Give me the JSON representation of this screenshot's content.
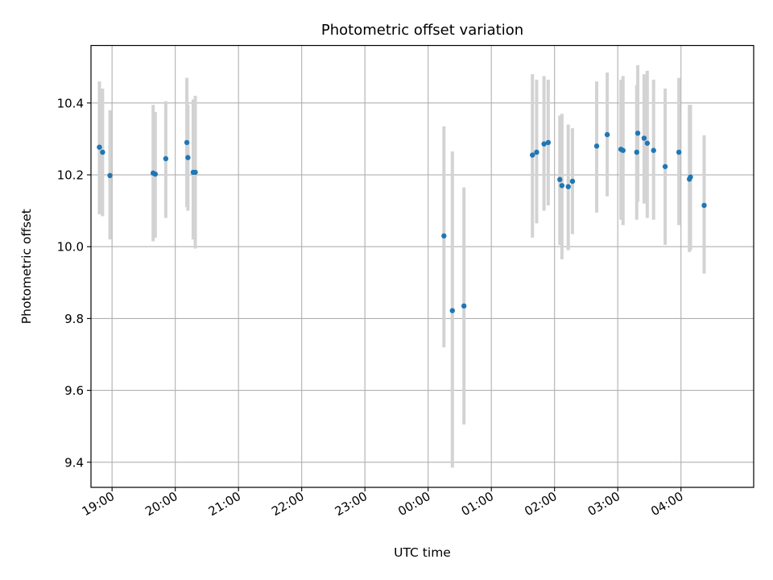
{
  "chart_data": {
    "type": "scatter",
    "title": "Photometric offset variation",
    "xlabel": "UTC time",
    "ylabel": "Photometric offset",
    "grid": true,
    "x_unit": "UTC time (HH:MM, spanning midnight)",
    "xlim": [
      "18:40",
      "05:09"
    ],
    "ylim": [
      9.33,
      10.56
    ],
    "x_ticks": [
      "19:00",
      "20:00",
      "21:00",
      "22:00",
      "23:00",
      "00:00",
      "01:00",
      "02:00",
      "03:00",
      "04:00"
    ],
    "y_ticks": [
      9.4,
      9.6,
      9.8,
      10.0,
      10.2,
      10.4
    ],
    "y_tick_labels": [
      "9.4",
      "9.6",
      "9.8",
      "10.0",
      "10.2",
      "10.4"
    ],
    "colors": {
      "point": "#1f77b4",
      "errorbar": "#d3d3d3",
      "grid": "#b0b0b0"
    },
    "series": [
      {
        "points": [
          {
            "x": "18:48",
            "y": 10.277,
            "err_low": 10.09,
            "err_high": 10.46
          },
          {
            "x": "18:51",
            "y": 10.263,
            "err_low": 10.085,
            "err_high": 10.44
          },
          {
            "x": "18:58",
            "y": 10.198,
            "err_low": 10.02,
            "err_high": 10.38
          },
          {
            "x": "19:39",
            "y": 10.205,
            "err_low": 10.015,
            "err_high": 10.395
          },
          {
            "x": "19:41",
            "y": 10.202,
            "err_low": 10.025,
            "err_high": 10.375
          },
          {
            "x": "19:51",
            "y": 10.245,
            "err_low": 10.08,
            "err_high": 10.405
          },
          {
            "x": "20:11",
            "y": 10.29,
            "err_low": 10.11,
            "err_high": 10.47
          },
          {
            "x": "20:12",
            "y": 10.248,
            "err_low": 10.1,
            "err_high": 10.395
          },
          {
            "x": "20:17",
            "y": 10.207,
            "err_low": 10.02,
            "err_high": 10.41
          },
          {
            "x": "20:19",
            "y": 10.207,
            "err_low": 9.995,
            "err_high": 10.42
          },
          {
            "x": "00:15",
            "y": 10.03,
            "err_low": 9.72,
            "err_high": 10.335
          },
          {
            "x": "00:23",
            "y": 9.822,
            "err_low": 9.385,
            "err_high": 10.265
          },
          {
            "x": "00:34",
            "y": 9.835,
            "err_low": 9.505,
            "err_high": 10.165
          },
          {
            "x": "01:39",
            "y": 10.255,
            "err_low": 10.025,
            "err_high": 10.48
          },
          {
            "x": "01:43",
            "y": 10.263,
            "err_low": 10.065,
            "err_high": 10.465
          },
          {
            "x": "01:50",
            "y": 10.286,
            "err_low": 10.1,
            "err_high": 10.475
          },
          {
            "x": "01:54",
            "y": 10.29,
            "err_low": 10.115,
            "err_high": 10.465
          },
          {
            "x": "02:05",
            "y": 10.187,
            "err_low": 10.005,
            "err_high": 10.365
          },
          {
            "x": "02:07",
            "y": 10.17,
            "err_low": 9.965,
            "err_high": 10.37
          },
          {
            "x": "02:13",
            "y": 10.167,
            "err_low": 9.99,
            "err_high": 10.34
          },
          {
            "x": "02:17",
            "y": 10.182,
            "err_low": 10.035,
            "err_high": 10.33
          },
          {
            "x": "02:40",
            "y": 10.28,
            "err_low": 10.095,
            "err_high": 10.46
          },
          {
            "x": "02:50",
            "y": 10.312,
            "err_low": 10.14,
            "err_high": 10.485
          },
          {
            "x": "03:03",
            "y": 10.271,
            "err_low": 10.075,
            "err_high": 10.465
          },
          {
            "x": "03:05",
            "y": 10.268,
            "err_low": 10.06,
            "err_high": 10.475
          },
          {
            "x": "03:18",
            "y": 10.263,
            "err_low": 10.075,
            "err_high": 10.45
          },
          {
            "x": "03:19",
            "y": 10.316,
            "err_low": 10.125,
            "err_high": 10.505
          },
          {
            "x": "03:25",
            "y": 10.302,
            "err_low": 10.12,
            "err_high": 10.48
          },
          {
            "x": "03:28",
            "y": 10.288,
            "err_low": 10.08,
            "err_high": 10.49
          },
          {
            "x": "03:34",
            "y": 10.268,
            "err_low": 10.075,
            "err_high": 10.465
          },
          {
            "x": "03:45",
            "y": 10.223,
            "err_low": 10.005,
            "err_high": 10.44
          },
          {
            "x": "03:58",
            "y": 10.263,
            "err_low": 10.06,
            "err_high": 10.47
          },
          {
            "x": "04:08",
            "y": 10.188,
            "err_low": 9.985,
            "err_high": 10.395
          },
          {
            "x": "04:09",
            "y": 10.194,
            "err_low": 9.99,
            "err_high": 10.395
          },
          {
            "x": "04:22",
            "y": 10.115,
            "err_low": 9.925,
            "err_high": 10.31
          }
        ]
      }
    ]
  }
}
